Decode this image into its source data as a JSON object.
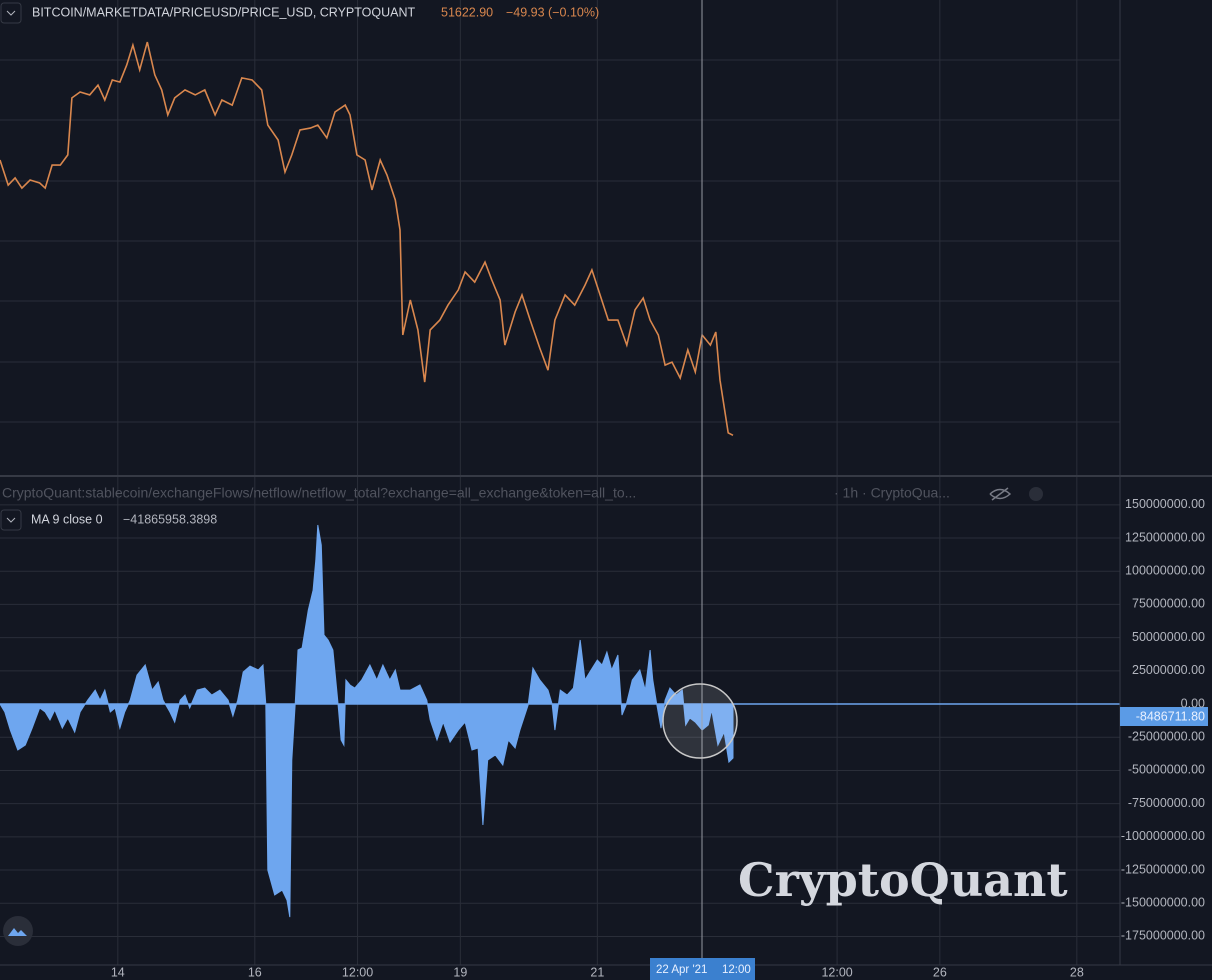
{
  "chart_data": [
    {
      "type": "line",
      "title": "BITCOIN/MARKETDATA/PRICEUSD/PRICE_USD, CRYPTOQUANT",
      "last_value": "51622.90",
      "change": "−49.93 (−0.10%)",
      "color": "#d9874e",
      "xlim": [
        12.28,
        28.63
      ],
      "ylim": [
        50290,
        66200
      ],
      "x": [
        12.28,
        12.4,
        12.5,
        12.6,
        12.72,
        12.86,
        12.94,
        13.04,
        13.16,
        13.27,
        13.33,
        13.45,
        13.59,
        13.71,
        13.81,
        13.92,
        14.03,
        14.13,
        14.22,
        14.32,
        14.43,
        14.54,
        14.64,
        14.73,
        14.83,
        14.98,
        15.13,
        15.27,
        15.42,
        15.52,
        15.67,
        15.81,
        15.96,
        16.1,
        16.19,
        16.34,
        16.44,
        16.54,
        16.66,
        16.81,
        16.92,
        17.05,
        17.17,
        17.32,
        17.39,
        17.49,
        17.61,
        17.71,
        17.83,
        17.93,
        18.05,
        18.12,
        18.16,
        18.27,
        18.38,
        18.48,
        18.56,
        18.7,
        18.82,
        18.97,
        19.07,
        19.21,
        19.36,
        19.46,
        19.58,
        19.65,
        19.8,
        19.9,
        20.02,
        20.16,
        20.28,
        20.38,
        20.53,
        20.67,
        20.82,
        20.92,
        21.04,
        21.16,
        21.3,
        21.43,
        21.55,
        21.67,
        21.77,
        21.89,
        21.99,
        22.09,
        22.21,
        22.32,
        22.43,
        22.53,
        22.65,
        22.73,
        22.79,
        22.91,
        22.98
      ],
      "values": [
        60840,
        60000,
        60240,
        59900,
        60170,
        60070,
        59900,
        60670,
        60670,
        61010,
        62920,
        63120,
        63020,
        63350,
        62850,
        63520,
        63450,
        64020,
        64690,
        63860,
        64790,
        63690,
        63190,
        62350,
        62920,
        63190,
        63020,
        63190,
        62350,
        62850,
        62680,
        63590,
        63520,
        63190,
        62010,
        61510,
        60440,
        61010,
        61850,
        61910,
        62010,
        61580,
        62450,
        62680,
        62350,
        61010,
        60840,
        59840,
        60840,
        60340,
        59500,
        58500,
        54980,
        56150,
        55150,
        53400,
        55150,
        55480,
        55980,
        56490,
        57090,
        56750,
        57420,
        56820,
        56150,
        54640,
        55750,
        56320,
        55480,
        54540,
        53800,
        55480,
        56320,
        55980,
        56650,
        57160,
        56320,
        55480,
        55480,
        54640,
        55820,
        56220,
        55480,
        54980,
        53970,
        54070,
        53540,
        54480,
        53740,
        54980,
        54640,
        55080,
        53470,
        51700,
        51620
      ]
    },
    {
      "type": "area",
      "title": "CryptoQuant:stablecoin/exchangeFlows/netflow/netflow_total?exchange=all_exchange&token=all_to...",
      "source": "· 1h · CryptoQua...",
      "series_name": "MA 9 close 0",
      "series_value": "−41865958.3898",
      "last_value_label": "-8486711.80",
      "color": "#6ea6ef",
      "xlim": [
        12.28,
        28.63
      ],
      "ylim": [
        -196500000,
        170200000
      ],
      "yticks": [
        {
          "value": 150000000,
          "label": "150000000.00"
        },
        {
          "value": 125000000,
          "label": "125000000.00"
        },
        {
          "value": 100000000,
          "label": "100000000.00"
        },
        {
          "value": 75000000,
          "label": "75000000.00"
        },
        {
          "value": 50000000,
          "label": "50000000.00"
        },
        {
          "value": 25000000,
          "label": "25000000.00"
        },
        {
          "value": 0,
          "label": "0.00"
        },
        {
          "value": -25000000,
          "label": "-25000000.00"
        },
        {
          "value": -50000000,
          "label": "-50000000.00"
        },
        {
          "value": -75000000,
          "label": "-75000000.00"
        },
        {
          "value": -100000000,
          "label": "-100000000.00"
        },
        {
          "value": -125000000,
          "label": "-125000000.00"
        },
        {
          "value": -150000000,
          "label": "-150000000.00"
        },
        {
          "value": -175000000,
          "label": "-175000000.00"
        }
      ],
      "xticks": [
        14,
        16,
        {
          "value": 17.5,
          "label": "12:00"
        },
        19,
        21,
        {
          "value": 24.5,
          "label": "12:00"
        },
        26,
        28
      ],
      "crosshair": {
        "date": "22 Apr '21",
        "time": "12:00"
      },
      "x": [
        12.28,
        12.35,
        12.43,
        12.54,
        12.65,
        12.75,
        12.86,
        12.94,
        13.01,
        13.08,
        13.19,
        13.27,
        13.37,
        13.45,
        13.56,
        13.67,
        13.74,
        13.81,
        13.89,
        13.96,
        14.03,
        14.1,
        14.18,
        14.28,
        14.4,
        14.5,
        14.59,
        14.66,
        14.76,
        14.83,
        14.91,
        14.98,
        15.05,
        15.16,
        15.27,
        15.37,
        15.49,
        15.61,
        15.68,
        15.75,
        15.83,
        15.93,
        16.05,
        16.12,
        16.16,
        16.19,
        16.29,
        16.4,
        16.47,
        16.51,
        16.54,
        16.59,
        16.63,
        16.69,
        16.78,
        16.85,
        16.89,
        16.92,
        16.97,
        17.01,
        17.07,
        17.14,
        17.21,
        17.26,
        17.3,
        17.33,
        17.39,
        17.46,
        17.56,
        17.68,
        17.78,
        17.87,
        17.97,
        18.05,
        18.12,
        18.27,
        18.41,
        18.51,
        18.56,
        18.66,
        18.75,
        18.85,
        18.97,
        19.07,
        19.17,
        19.26,
        19.33,
        19.4,
        19.51,
        19.62,
        19.7,
        19.8,
        19.87,
        19.99,
        20.06,
        20.16,
        20.28,
        20.34,
        20.38,
        20.46,
        20.56,
        20.65,
        20.75,
        20.82,
        20.89,
        21.0,
        21.07,
        21.14,
        21.21,
        21.3,
        21.36,
        21.42,
        21.51,
        21.62,
        21.7,
        21.77,
        21.81,
        21.87,
        21.93,
        21.99,
        22.06,
        22.15,
        22.24,
        22.29,
        22.35,
        22.43,
        22.53,
        22.62,
        22.67,
        22.76,
        22.85,
        22.92,
        22.98
      ],
      "values": [
        0,
        -6000000,
        -19600000,
        -34600000,
        -30900000,
        -18100000,
        -3000000,
        -6000000,
        -12000000,
        -4500000,
        -18100000,
        -10500000,
        -21100000,
        -6000000,
        3000000,
        10500000,
        3000000,
        10500000,
        -6000000,
        -3000000,
        -18100000,
        -6000000,
        3000000,
        21800000,
        29400000,
        10500000,
        16600000,
        3000000,
        -6000000,
        -13600000,
        3000000,
        6800000,
        -3000000,
        10500000,
        12000000,
        6800000,
        10500000,
        3000000,
        -9000000,
        3000000,
        24100000,
        28600000,
        25600000,
        29400000,
        0,
        -125000000,
        -143800000,
        -140100000,
        -147600000,
        -160400000,
        -42200000,
        0,
        40700000,
        42200000,
        70800000,
        85800000,
        108400000,
        134800000,
        119700000,
        52000000,
        48200000,
        40700000,
        3000000,
        -27100000,
        -30900000,
        18100000,
        14300000,
        12000000,
        18100000,
        29400000,
        18100000,
        29400000,
        18100000,
        25600000,
        10500000,
        10500000,
        14300000,
        3000000,
        -12000000,
        -27100000,
        -13600000,
        -28600000,
        -19600000,
        -13600000,
        -34600000,
        -33100000,
        -91100000,
        -42200000,
        -38400000,
        -45900000,
        -27100000,
        -33100000,
        -19600000,
        -800000,
        27100000,
        18100000,
        10500000,
        0,
        -19600000,
        10500000,
        6800000,
        12000000,
        48200000,
        18100000,
        24100000,
        33100000,
        29400000,
        39200000,
        25600000,
        36900000,
        -8300000,
        -800000,
        18100000,
        25600000,
        10500000,
        40700000,
        18100000,
        -800000,
        -18100000,
        3000000,
        12000000,
        6800000,
        10500000,
        -15800000,
        -10500000,
        -13600000,
        -19600000,
        -15800000,
        -4500000,
        -30900000,
        -21100000,
        -43700000,
        -40700000
      ]
    }
  ],
  "watermark": "CryptoQuant"
}
